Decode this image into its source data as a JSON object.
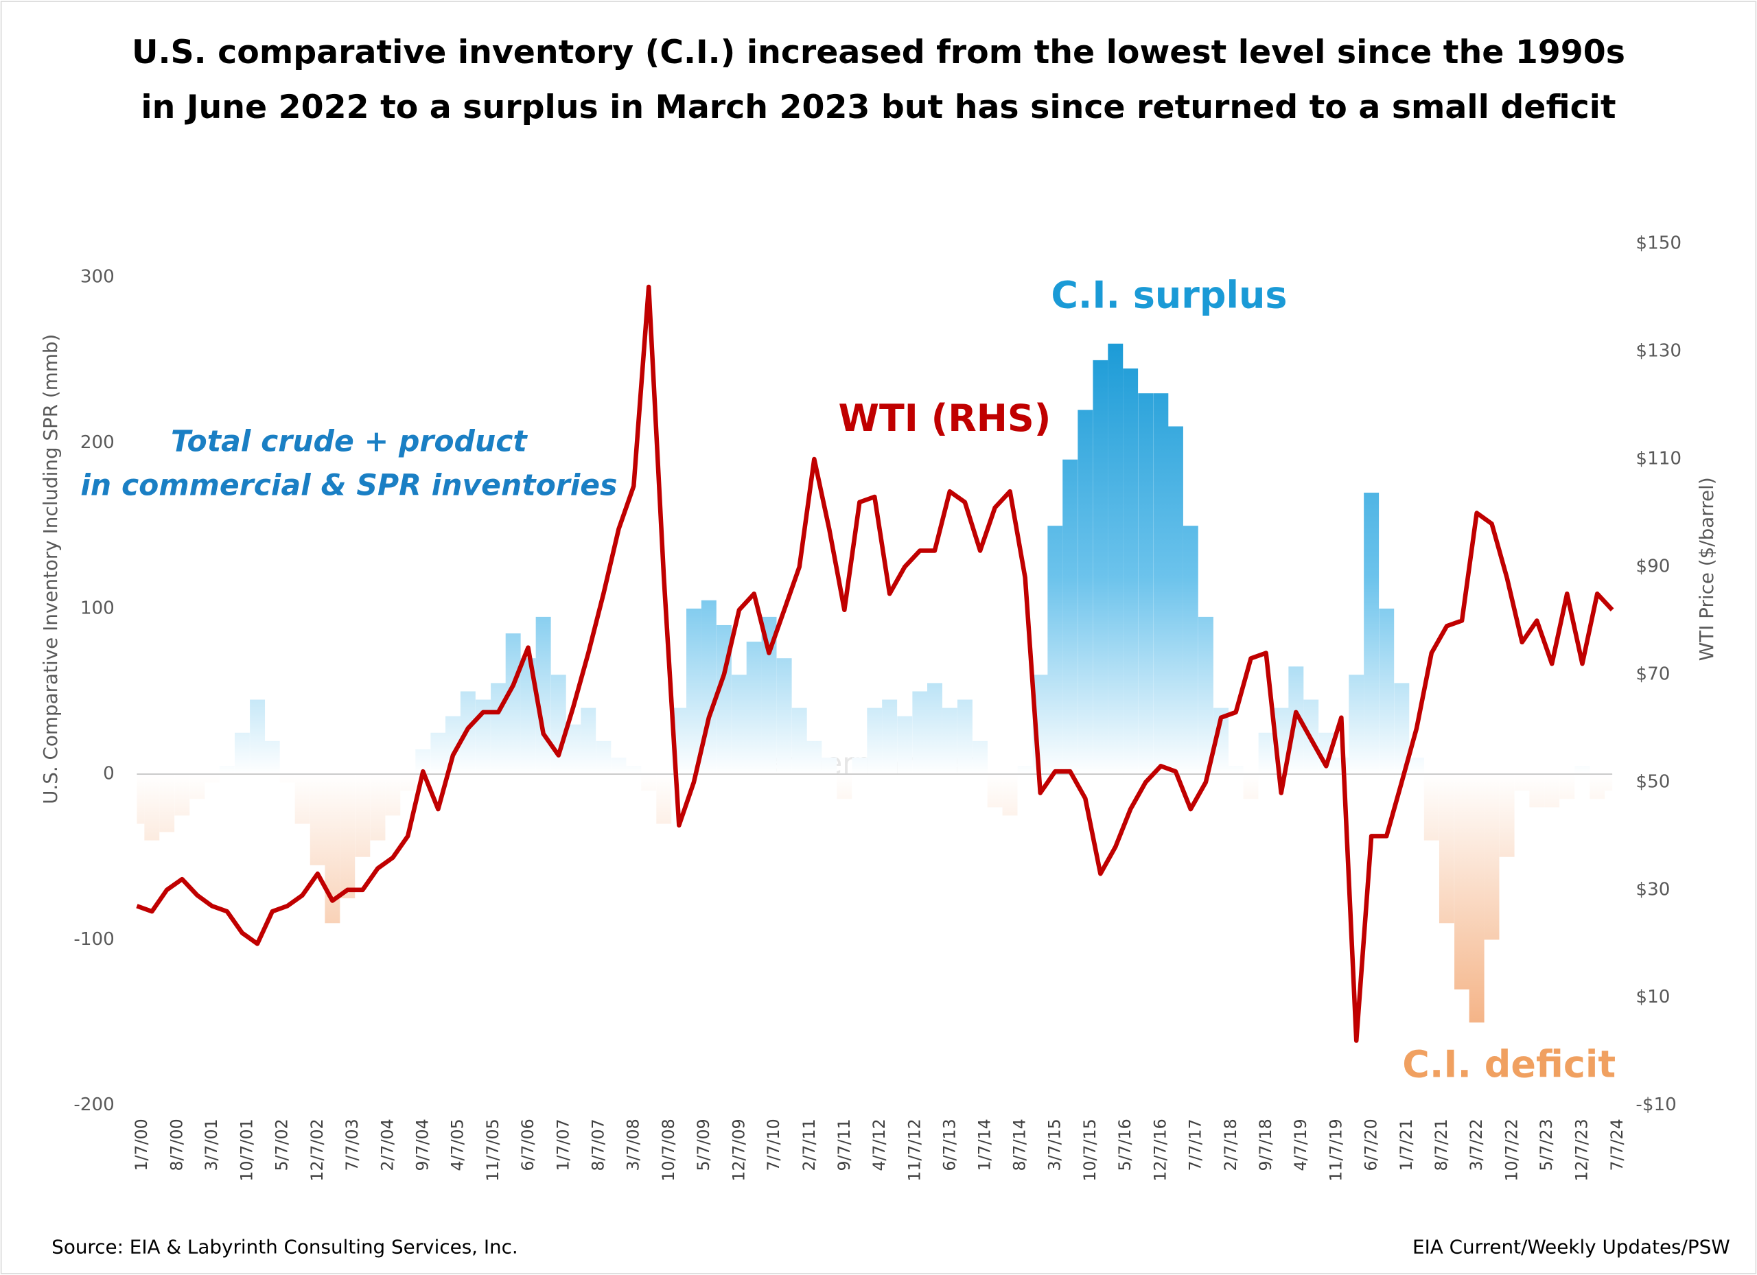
{
  "chart_data": {
    "type": "combo",
    "title": [
      "U.S. comparative inventory (C.I.) increased from the lowest level since the 1990s",
      "in June 2022 to a surplus in March 2023 but has since returned to a small deficit"
    ],
    "y_label": "U.S. Comparative Inventory Including SPR (mmb)",
    "y2_label": "WTI Price ($/barrel)",
    "source": "Source: EIA & Labyrinth Consulting Services, Inc.",
    "source_right": "EIA Current/Weekly Updates/PSW",
    "watermark": "artberman.com",
    "annotations": [
      {
        "text": "C.I. surplus",
        "color": "#1a9ad6"
      },
      {
        "text": "WTI (RHS)",
        "color": "#c00000"
      },
      {
        "text": "Total crude + product",
        "color": "#1a7fc4"
      },
      {
        "text": "in commercial & SPR inventories",
        "color": "#1a7fc4"
      },
      {
        "text": "C.I. deficit",
        "color": "#f0a060"
      }
    ],
    "xlim": [
      "1/7/00",
      "7/7/24"
    ],
    "xticks": [
      "1/7/00",
      "8/7/00",
      "3/7/01",
      "10/7/01",
      "5/7/02",
      "12/7/02",
      "7/7/03",
      "2/7/04",
      "9/7/04",
      "4/7/05",
      "11/7/05",
      "6/7/06",
      "1/7/07",
      "8/7/07",
      "3/7/08",
      "10/7/08",
      "5/7/09",
      "12/7/09",
      "7/7/10",
      "2/7/11",
      "9/7/11",
      "4/7/12",
      "11/7/12",
      "6/7/13",
      "1/7/14",
      "8/7/14",
      "3/7/15",
      "10/7/15",
      "5/7/16",
      "12/7/16",
      "7/7/17",
      "2/7/18",
      "9/7/18",
      "4/7/19",
      "11/7/19",
      "6/7/20",
      "1/7/21",
      "8/7/21",
      "3/7/22",
      "10/7/22",
      "5/7/23",
      "12/7/23",
      "7/7/24"
    ],
    "ylim": [
      -200,
      300
    ],
    "yticks": [
      -200,
      -100,
      0,
      100,
      200,
      300
    ],
    "y2lim": [
      -10,
      150
    ],
    "y2ticks": [
      {
        "value": -10,
        "label": "-$10"
      },
      {
        "value": 10,
        "label": "$10"
      },
      {
        "value": 30,
        "label": "$30"
      },
      {
        "value": 50,
        "label": "$50"
      },
      {
        "value": 70,
        "label": "$70"
      },
      {
        "value": 90,
        "label": "$90"
      },
      {
        "value": 110,
        "label": "$110"
      },
      {
        "value": 130,
        "label": "$130"
      },
      {
        "value": 150,
        "label": "$150"
      }
    ],
    "x": [
      "1/7/00",
      "4/7/00",
      "7/7/00",
      "10/7/00",
      "1/7/01",
      "4/7/01",
      "7/7/01",
      "10/7/01",
      "1/7/02",
      "4/7/02",
      "7/7/02",
      "10/7/02",
      "1/7/03",
      "4/7/03",
      "7/7/03",
      "10/7/03",
      "1/7/04",
      "4/7/04",
      "7/7/04",
      "10/7/04",
      "1/7/05",
      "4/7/05",
      "7/7/05",
      "10/7/05",
      "1/7/06",
      "4/7/06",
      "7/7/06",
      "10/7/06",
      "1/7/07",
      "4/7/07",
      "7/7/07",
      "10/7/07",
      "1/7/08",
      "4/7/08",
      "7/7/08",
      "10/7/08",
      "1/7/09",
      "4/7/09",
      "7/7/09",
      "10/7/09",
      "1/7/10",
      "4/7/10",
      "7/7/10",
      "10/7/10",
      "1/7/11",
      "4/7/11",
      "7/7/11",
      "10/7/11",
      "1/7/12",
      "4/7/12",
      "7/7/12",
      "10/7/12",
      "1/7/13",
      "4/7/13",
      "7/7/13",
      "10/7/13",
      "1/7/14",
      "4/7/14",
      "7/7/14",
      "10/7/14",
      "1/7/15",
      "4/7/15",
      "7/7/15",
      "10/7/15",
      "1/7/16",
      "4/7/16",
      "7/7/16",
      "10/7/16",
      "1/7/17",
      "4/7/17",
      "7/7/17",
      "10/7/17",
      "1/7/18",
      "4/7/18",
      "7/7/18",
      "10/7/18",
      "1/7/19",
      "4/7/19",
      "7/7/19",
      "10/7/19",
      "1/7/20",
      "4/7/20",
      "7/7/20",
      "10/7/20",
      "1/7/21",
      "4/7/21",
      "7/7/21",
      "10/7/21",
      "1/7/22",
      "4/7/22",
      "7/7/22",
      "10/7/22",
      "1/7/23",
      "4/7/23",
      "7/7/23",
      "10/7/23",
      "1/7/24",
      "4/7/24",
      "7/7/24"
    ],
    "series": [
      {
        "name": "C.I.",
        "type": "area",
        "color": "#1a9ad6",
        "negative_color": "#f4b183",
        "values": [
          -30,
          -40,
          -35,
          -25,
          -15,
          -5,
          5,
          25,
          45,
          20,
          -5,
          -30,
          -55,
          -90,
          -75,
          -50,
          -40,
          -25,
          -10,
          15,
          25,
          35,
          50,
          45,
          55,
          85,
          70,
          95,
          60,
          30,
          40,
          20,
          10,
          5,
          -10,
          -30,
          40,
          100,
          105,
          90,
          60,
          80,
          95,
          70,
          40,
          20,
          10,
          -15,
          10,
          40,
          45,
          35,
          50,
          55,
          40,
          45,
          20,
          -20,
          -25,
          5,
          60,
          150,
          190,
          220,
          250,
          260,
          245,
          230,
          230,
          210,
          150,
          95,
          40,
          5,
          -15,
          25,
          40,
          65,
          45,
          25,
          10,
          60,
          170,
          100,
          55,
          10,
          -40,
          -90,
          -130,
          -150,
          -100,
          -50,
          -10,
          -20,
          -20,
          -15,
          5,
          -15,
          -10
        ]
      },
      {
        "name": "WTI",
        "type": "line",
        "axis": "y2",
        "color": "#c00000",
        "values": [
          27,
          26,
          30,
          32,
          29,
          27,
          26,
          22,
          20,
          26,
          27,
          29,
          33,
          28,
          30,
          30,
          34,
          36,
          40,
          52,
          45,
          55,
          60,
          63,
          63,
          68,
          75,
          59,
          55,
          64,
          74,
          85,
          97,
          105,
          142,
          88,
          42,
          50,
          62,
          70,
          82,
          85,
          74,
          82,
          90,
          110,
          97,
          82,
          102,
          103,
          85,
          90,
          93,
          93,
          104,
          102,
          93,
          101,
          104,
          88,
          48,
          52,
          52,
          47,
          33,
          38,
          45,
          50,
          53,
          52,
          45,
          50,
          62,
          63,
          73,
          74,
          48,
          63,
          58,
          53,
          62,
          2,
          40,
          40,
          50,
          60,
          74,
          79,
          80,
          100,
          98,
          88,
          76,
          80,
          72,
          85,
          72,
          85,
          82
        ]
      }
    ]
  }
}
